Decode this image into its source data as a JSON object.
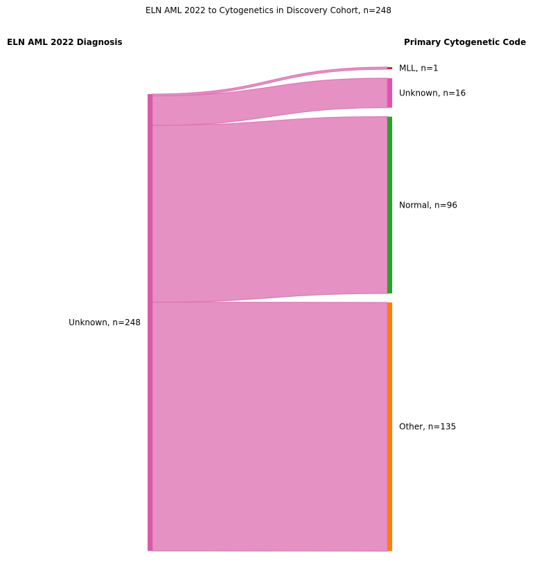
{
  "title": "ELN AML 2022 to Cytogenetics in Discovery Cohort, n=248",
  "left_header": "ELN AML 2022 Diagnosis",
  "right_header": "Primary Cytogenetic Code",
  "colors": {
    "source": "#d95ba8",
    "flow": "#e591c4",
    "flow_edge": "#dd77b5",
    "MLL": "#d62728",
    "Unknown": "#e155ad",
    "Normal": "#2ca02c",
    "Other": "#ff7f0e"
  },
  "chart_data": {
    "type": "sankey",
    "source_nodes": [
      {
        "name": "Unknown",
        "count": 248,
        "label": "Unknown, n=248"
      }
    ],
    "target_nodes": [
      {
        "name": "MLL",
        "count": 1,
        "label": "MLL, n=1"
      },
      {
        "name": "Unknown",
        "count": 16,
        "label": "Unknown, n=16"
      },
      {
        "name": "Normal",
        "count": 96,
        "label": "Normal, n=96"
      },
      {
        "name": "Other",
        "count": 135,
        "label": "Other, n=135"
      }
    ],
    "links": [
      {
        "source": "Unknown",
        "target": "MLL",
        "value": 1
      },
      {
        "source": "Unknown",
        "target": "Unknown",
        "value": 16
      },
      {
        "source": "Unknown",
        "target": "Normal",
        "value": 96
      },
      {
        "source": "Unknown",
        "target": "Other",
        "value": 135
      }
    ]
  }
}
